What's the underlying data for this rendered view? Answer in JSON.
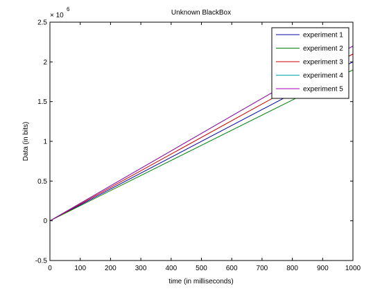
{
  "chart_data": {
    "type": "line",
    "title": "Unknown BlackBox",
    "xlabel": "time (in milliseconds)",
    "ylabel": "Data (in bits)",
    "y_multiplier_label": "× 10",
    "y_multiplier_exponent": "6",
    "xlim": [
      0,
      1000
    ],
    "ylim": [
      -0.5,
      2.5
    ],
    "x_ticks": [
      "0",
      "100",
      "200",
      "300",
      "400",
      "500",
      "600",
      "700",
      "800",
      "900",
      "1000"
    ],
    "y_ticks": [
      "-0.5",
      "0",
      "0.5",
      "1",
      "1.5",
      "2",
      "2.5"
    ],
    "grid": false,
    "legend_position": "top-right",
    "series": [
      {
        "name": "experiment 1",
        "color": "#0000aa",
        "x": [
          0,
          1000
        ],
        "y": [
          0,
          2.0
        ]
      },
      {
        "name": "experiment 2",
        "color": "#008000",
        "x": [
          0,
          1000
        ],
        "y": [
          0,
          1.9
        ]
      },
      {
        "name": "experiment 3",
        "color": "#cc0000",
        "x": [
          0,
          1000
        ],
        "y": [
          0,
          2.1
        ]
      },
      {
        "name": "experiment 4",
        "color": "#00aaaa",
        "x": [
          0,
          1000
        ],
        "y": [
          0,
          2.2
        ]
      },
      {
        "name": "experiment 5",
        "color": "#aa00aa",
        "x": [
          0,
          1000
        ],
        "y": [
          0,
          2.2
        ]
      }
    ]
  }
}
